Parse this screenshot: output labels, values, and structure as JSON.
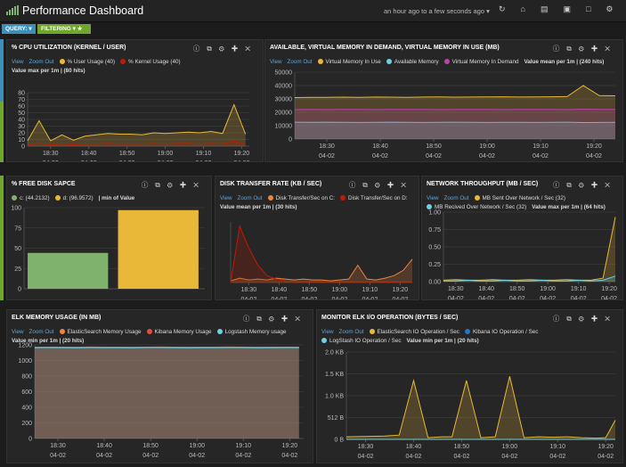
{
  "header": {
    "title": "Performance Dashboard",
    "timespan": "an hour ago to a few seconds ago"
  },
  "toolbar": {
    "query": "QUERY:",
    "filtering": "FILTERING"
  },
  "controls": {
    "view": "View",
    "zoom": "Zoom Out"
  },
  "panels": [
    {
      "title": "% CPU UTILIZATION (KERNEL / USER)",
      "summary": "Value max per 1m | (80 hits)",
      "chart": {
        "type": "area",
        "xlim": [
          1104,
          1162
        ],
        "ylim": [
          0,
          80
        ],
        "yticks": [
          0,
          10,
          20,
          30,
          40,
          50,
          60,
          70,
          80
        ],
        "xticks": [
          {
            "value": 1110,
            "label": [
              "18:30",
              "04-02"
            ]
          },
          {
            "value": 1120,
            "label": [
              "18:40",
              "04-02"
            ]
          },
          {
            "value": 1130,
            "label": [
              "18:50",
              "04-02"
            ]
          },
          {
            "value": 1140,
            "label": [
              "19:00",
              "04-02"
            ]
          },
          {
            "value": 1150,
            "label": [
              "19:10",
              "04-02"
            ]
          },
          {
            "value": 1160,
            "label": [
              "19:20",
              "04-02"
            ]
          }
        ],
        "x": [
          1104,
          1107,
          1110,
          1113,
          1116,
          1119,
          1122,
          1125,
          1128,
          1131,
          1134,
          1137,
          1140,
          1143,
          1146,
          1149,
          1152,
          1155,
          1158,
          1161
        ],
        "series": [
          {
            "name": "% User Usage (40)",
            "color": "#EAB839",
            "values": [
              8,
              38,
              8,
              17,
              9,
              15,
              17,
              19,
              18,
              18,
              17,
              20,
              19,
              20,
              21,
              20,
              22,
              19,
              62,
              18
            ]
          },
          {
            "name": "% Kernel Usage (40)",
            "color": "#BF1B00",
            "values": [
              2,
              4,
              2,
              3,
              2,
              3,
              3,
              4,
              3,
              3,
              3,
              4,
              3,
              4,
              4,
              3,
              4,
              3,
              8,
              3
            ]
          }
        ]
      }
    },
    {
      "title": "AVAILABLE, VIRTUAL MEMORY IN DEMAND, VIRTUAL MEMORY IN USE (MB)",
      "summary": "Value mean per 1m | (240 hits)",
      "chart": {
        "type": "area",
        "xlim": [
          1104,
          1164
        ],
        "ylim": [
          0,
          50000
        ],
        "yticks": [
          0,
          10000,
          20000,
          30000,
          40000,
          50000
        ],
        "xticks": [
          {
            "value": 1110,
            "label": [
              "18:30",
              "04-02"
            ]
          },
          {
            "value": 1120,
            "label": [
              "18:40",
              "04-02"
            ]
          },
          {
            "value": 1130,
            "label": [
              "18:50",
              "04-02"
            ]
          },
          {
            "value": 1140,
            "label": [
              "19:00",
              "04-02"
            ]
          },
          {
            "value": 1150,
            "label": [
              "19:10",
              "04-02"
            ]
          },
          {
            "value": 1160,
            "label": [
              "19:20",
              "04-02"
            ]
          }
        ],
        "x": [
          1104,
          1107,
          1110,
          1113,
          1116,
          1119,
          1122,
          1125,
          1128,
          1131,
          1134,
          1137,
          1140,
          1143,
          1146,
          1149,
          1152,
          1155,
          1158,
          1161,
          1164
        ],
        "series": [
          {
            "name": "Virtual Memory In Use",
            "color": "#EAB839",
            "values": [
              31000,
              31200,
              31100,
              31300,
              31200,
              31400,
              31300,
              31200,
              31400,
              31500,
              31300,
              31400,
              31500,
              31600,
              31400,
              31500,
              31600,
              31800,
              40000,
              32500,
              32300
            ]
          },
          {
            "name": "Available Memory",
            "color": "#6ED0E0",
            "values": [
              12600,
              12500,
              12600,
              12500,
              12400,
              12500,
              12600,
              12500,
              12400,
              12500,
              12600,
              12500,
              12400,
              12500,
              12500,
              12400,
              12500,
              12600,
              12300,
              12400,
              12500
            ]
          },
          {
            "name": "Virtual Memory In Demand",
            "color": "#BA43A9",
            "values": [
              22000,
              22100,
              22000,
              22200,
              22100,
              22000,
              22100,
              22200,
              22100,
              22000,
              22100,
              22200,
              22100,
              22000,
              22100,
              22200,
              22100,
              22000,
              22300,
              22200,
              22100
            ]
          }
        ]
      }
    },
    {
      "title": "% FREE DISK SAPCE",
      "summary": "| min of Value",
      "chart": {
        "type": "bar",
        "ylim": [
          0,
          100
        ],
        "yticks": [
          0,
          25,
          50,
          75,
          100
        ],
        "series": [
          {
            "name": "c: (44.2132)",
            "color": "#7EB26D",
            "values": [
              44.2132
            ]
          },
          {
            "name": "d: (96.9572)",
            "color": "#EAB839",
            "values": [
              96.9572
            ]
          }
        ]
      }
    },
    {
      "title": "DISK TRANSFER RATE (KB / SEC)",
      "summary": "Value mean per 1m | (30 hits)",
      "chart": {
        "type": "area",
        "xlim": [
          1104,
          1164
        ],
        "ylim": [
          0,
          70
        ],
        "xticks": [
          {
            "value": 1110,
            "label": [
              "18:30",
              "04-02"
            ]
          },
          {
            "value": 1120,
            "label": [
              "18:40",
              "04-02"
            ]
          },
          {
            "value": 1130,
            "label": [
              "18:50",
              "04-02"
            ]
          },
          {
            "value": 1140,
            "label": [
              "19:00",
              "04-02"
            ]
          },
          {
            "value": 1150,
            "label": [
              "19:10",
              "04-02"
            ]
          },
          {
            "value": 1160,
            "label": [
              "19:20",
              "04-02"
            ]
          }
        ],
        "x": [
          1104,
          1107,
          1110,
          1113,
          1116,
          1119,
          1122,
          1125,
          1128,
          1131,
          1134,
          1137,
          1140,
          1143,
          1146,
          1149,
          1152,
          1155,
          1158,
          1161,
          1164
        ],
        "series": [
          {
            "name": "Disk Transfer/Sec on C:",
            "color": "#EF843C",
            "values": [
              2,
              5,
              3,
              4,
              3,
              5,
              4,
              3,
              4,
              3,
              3,
              2,
              3,
              4,
              20,
              4,
              3,
              5,
              8,
              14,
              27
            ]
          },
          {
            "name": "Disk Transfer/Sec on D:",
            "color": "#BF1B00",
            "values": [
              0,
              65,
              40,
              20,
              8,
              4,
              2,
              1,
              1,
              1,
              1,
              1,
              1,
              1,
              1,
              1,
              1,
              1,
              1,
              1,
              1
            ]
          }
        ]
      }
    },
    {
      "title": "NETWORK THROUGHPUT (MB / SEC)",
      "summary": "Value max per 1m | (64 hits)",
      "chart": {
        "type": "area",
        "xlim": [
          1106,
          1162
        ],
        "ylim": [
          0,
          1
        ],
        "yticks": [
          {
            "value": 0,
            "label": "0.00"
          },
          {
            "value": 0.25,
            "label": "0.25"
          },
          {
            "value": 0.5,
            "label": "0.50"
          },
          {
            "value": 0.75,
            "label": "0.75"
          },
          {
            "value": 1,
            "label": "1.00"
          }
        ],
        "xticks": [
          {
            "value": 1110,
            "label": [
              "18:30",
              "04-02"
            ]
          },
          {
            "value": 1120,
            "label": [
              "18:40",
              "04-02"
            ]
          },
          {
            "value": 1130,
            "label": [
              "18:50",
              "04-02"
            ]
          },
          {
            "value": 1140,
            "label": [
              "19:00",
              "04-02"
            ]
          },
          {
            "value": 1150,
            "label": [
              "19:10",
              "04-02"
            ]
          },
          {
            "value": 1160,
            "label": [
              "19:20",
              "04-02"
            ]
          }
        ],
        "x": [
          1106,
          1110,
          1114,
          1118,
          1122,
          1126,
          1130,
          1134,
          1138,
          1142,
          1146,
          1150,
          1154,
          1158,
          1162
        ],
        "series": [
          {
            "name": "MB Sent Over Network / Sec (32)",
            "color": "#EAB839",
            "values": [
              0.02,
              0.03,
              0.02,
              0.02,
              0.03,
              0.02,
              0.02,
              0.03,
              0.02,
              0.02,
              0.03,
              0.02,
              0.02,
              0.05,
              0.93
            ]
          },
          {
            "name": "MB Recived Over Network / Sec (32)",
            "color": "#6ED0E0",
            "values": [
              0.01,
              0.01,
              0.02,
              0.01,
              0.01,
              0.02,
              0.01,
              0.01,
              0.02,
              0.01,
              0.01,
              0.02,
              0.01,
              0.02,
              0.08
            ]
          }
        ]
      }
    },
    {
      "title": "ELK MEMORY USAGE (IN MB)",
      "summary": "Value min per 1m | (20 hits)",
      "chart": {
        "type": "area",
        "xlim": [
          1105,
          1163
        ],
        "ylim": [
          0,
          1200
        ],
        "yticks": [
          0,
          200,
          400,
          600,
          800,
          1000,
          1200
        ],
        "xticks": [
          {
            "value": 1110,
            "label": [
              "18:30",
              "04-02"
            ]
          },
          {
            "value": 1120,
            "label": [
              "18:40",
              "04-02"
            ]
          },
          {
            "value": 1130,
            "label": [
              "18:50",
              "04-02"
            ]
          },
          {
            "value": 1140,
            "label": [
              "19:00",
              "04-02"
            ]
          },
          {
            "value": 1150,
            "label": [
              "19:10",
              "04-02"
            ]
          },
          {
            "value": 1160,
            "label": [
              "19:20",
              "04-02"
            ]
          }
        ],
        "x": [
          1105,
          1108,
          1111,
          1114,
          1117,
          1120,
          1123,
          1126,
          1129,
          1132,
          1135,
          1138,
          1141,
          1144,
          1147,
          1150,
          1153,
          1156,
          1159,
          1162
        ],
        "series": [
          {
            "name": "ElasticSearch Memory Usage",
            "color": "#EF843C",
            "values": [
              1170,
              1172,
              1171,
              1170,
              1173,
              1172,
              1171,
              1170,
              1172,
              1173,
              1171,
              1170,
              1172,
              1171,
              1173,
              1172,
              1170,
              1171,
              1172,
              1171
            ]
          },
          {
            "name": "Kibana Memory Usage",
            "color": "#E24D42",
            "values": [
              1168,
              1169,
              1168,
              1167,
              1169,
              1168,
              1168,
              1167,
              1169,
              1169,
              1168,
              1167,
              1168,
              1168,
              1169,
              1169,
              1167,
              1168,
              1169,
              1168
            ]
          },
          {
            "name": "Logstash Memory usage",
            "color": "#6ED0E0",
            "values": [
              1165,
              1166,
              1165,
              1164,
              1166,
              1165,
              1165,
              1164,
              1166,
              1166,
              1165,
              1164,
              1165,
              1165,
              1166,
              1166,
              1164,
              1165,
              1166,
              1165
            ]
          }
        ]
      }
    },
    {
      "title": "MONITOR ELK I/O OPERATION (BYTES / SEC)",
      "summary": "Value min per 1m | (20 hits)",
      "chart": {
        "type": "area",
        "xlim": [
          1106,
          1162
        ],
        "ylim": [
          0,
          2048
        ],
        "yticks": [
          {
            "value": 0,
            "label": "0 B"
          },
          {
            "value": 512,
            "label": "512 B"
          },
          {
            "value": 1024,
            "label": "1.0 KB"
          },
          {
            "value": 1536,
            "label": "1.5 KB"
          },
          {
            "value": 2048,
            "label": "2.0 KB"
          }
        ],
        "xticks": [
          {
            "value": 1110,
            "label": [
              "18:30",
              "04-02"
            ]
          },
          {
            "value": 1120,
            "label": [
              "18:40",
              "04-02"
            ]
          },
          {
            "value": 1130,
            "label": [
              "18:50",
              "04-02"
            ]
          },
          {
            "value": 1140,
            "label": [
              "19:00",
              "04-02"
            ]
          },
          {
            "value": 1150,
            "label": [
              "19:10",
              "04-02"
            ]
          },
          {
            "value": 1160,
            "label": [
              "19:20",
              "04-02"
            ]
          }
        ],
        "x": [
          1106,
          1110,
          1114,
          1117,
          1120,
          1123,
          1126,
          1128,
          1131,
          1134,
          1137,
          1140,
          1143,
          1146,
          1149,
          1152,
          1155,
          1158,
          1160,
          1162
        ],
        "series": [
          {
            "name": "ElasticSearch IO Operation / Sec",
            "color": "#EAB839",
            "values": [
              60,
              70,
              80,
              100,
              1380,
              40,
              60,
              60,
              1380,
              40,
              60,
              1480,
              40,
              60,
              50,
              60,
              40,
              30,
              40,
              450
            ]
          },
          {
            "name": "Kibana IO Operation / Sec",
            "color": "#1F78C1",
            "values": [
              0,
              0,
              0,
              0,
              0,
              0,
              0,
              0,
              0,
              0,
              0,
              0,
              0,
              0,
              0,
              0,
              0,
              0,
              0,
              0
            ]
          },
          {
            "name": "LogStash IO Operation / Sec",
            "color": "#6ED0E0",
            "values": [
              0,
              0,
              0,
              0,
              0,
              0,
              0,
              0,
              0,
              0,
              0,
              0,
              0,
              0,
              0,
              0,
              0,
              0,
              0,
              0
            ]
          }
        ]
      }
    }
  ]
}
